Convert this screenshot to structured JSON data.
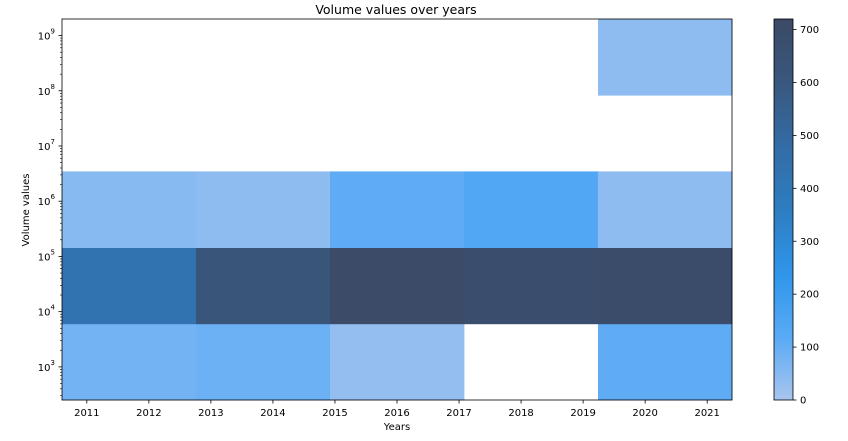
{
  "chart_data": {
    "type": "heatmap",
    "title": "Volume values over years",
    "xlabel": "Years",
    "ylabel": "Volume values",
    "x_ticks": [
      "2011",
      "2012",
      "2013",
      "2014",
      "2015",
      "2016",
      "2017",
      "2018",
      "2019",
      "2020",
      "2021"
    ],
    "x_range": [
      2010.6,
      2021.4
    ],
    "y_scale": "log",
    "y_range_log10": [
      2.4,
      9.3
    ],
    "y_ticks": [
      {
        "base": "10",
        "exp": "3",
        "log": 3
      },
      {
        "base": "10",
        "exp": "4",
        "log": 4
      },
      {
        "base": "10",
        "exp": "5",
        "log": 5
      },
      {
        "base": "10",
        "exp": "6",
        "log": 6
      },
      {
        "base": "10",
        "exp": "7",
        "log": 7
      },
      {
        "base": "10",
        "exp": "8",
        "log": 8
      },
      {
        "base": "10",
        "exp": "9",
        "log": 9
      }
    ],
    "x_bin_edges": [
      2010.6,
      2012.76,
      2014.92,
      2017.08,
      2019.24,
      2021.4
    ],
    "y_bin_edges_log10": [
      2.4,
      3.78,
      5.16,
      6.54,
      7.92,
      9.3
    ],
    "counts": [
      [
        80,
        90,
        30,
        0,
        110
      ],
      [
        430,
        620,
        710,
        690,
        700
      ],
      [
        50,
        40,
        110,
        140,
        40
      ],
      [
        0,
        0,
        0,
        0,
        0
      ],
      [
        0,
        0,
        0,
        0,
        40
      ]
    ],
    "colorbar": {
      "min": 0,
      "max": 720,
      "ticks": [
        "0",
        "100",
        "200",
        "300",
        "400",
        "500",
        "600",
        "700"
      ],
      "colors": [
        "#a9c5ee",
        "#58aaf5",
        "#2f95ea",
        "#2d7dc0",
        "#336ca5",
        "#39577e",
        "#3b4a66"
      ]
    },
    "grid": false
  }
}
